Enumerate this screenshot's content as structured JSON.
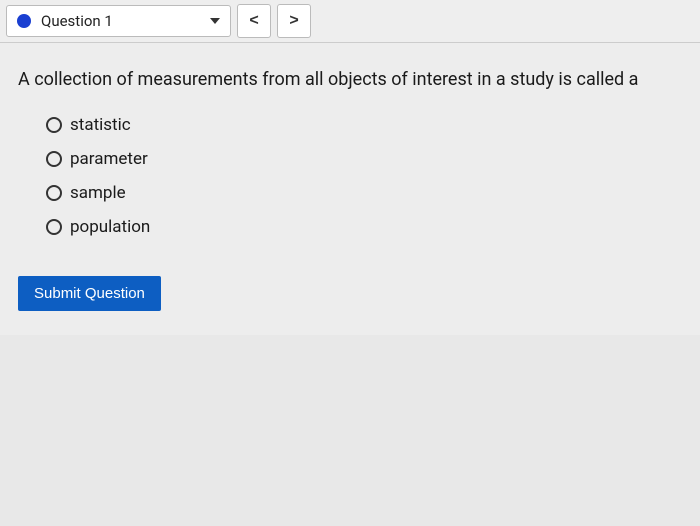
{
  "toolbar": {
    "question_label": "Question 1",
    "prev_symbol": "<",
    "next_symbol": ">",
    "status_color": "#1a3fd1"
  },
  "question": {
    "text": "A collection of measurements from all objects of interest in a study is called a",
    "options": [
      {
        "label": "statistic"
      },
      {
        "label": "parameter"
      },
      {
        "label": "sample"
      },
      {
        "label": "population"
      }
    ]
  },
  "submit": {
    "label": "Submit Question",
    "bg_color": "#0d5ec2"
  },
  "colors": {
    "page_bg": "#ededed",
    "toolbar_bg": "#eeeeee",
    "border": "#bbbbbb",
    "text": "#1a1a1a"
  }
}
